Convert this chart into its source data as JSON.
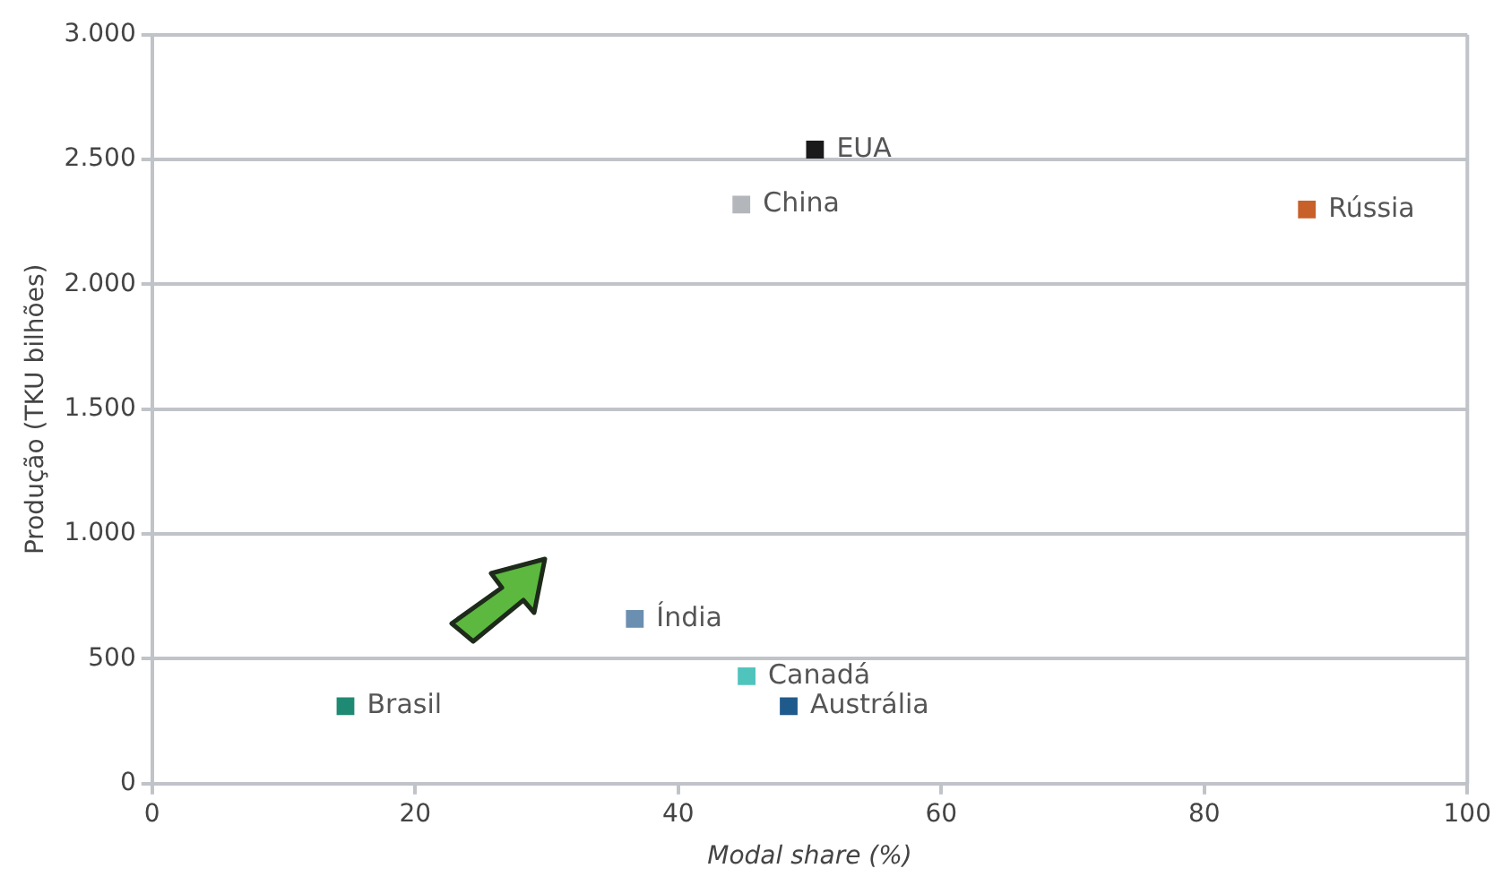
{
  "chart_data": {
    "type": "scatter",
    "xlabel": "Modal share (%)",
    "ylabel": "Produção (TKU bilhões)",
    "xlim": [
      0,
      100
    ],
    "xticks": [
      0,
      20,
      40,
      60,
      80,
      100
    ],
    "ylim": [
      0,
      3000
    ],
    "yticks": [
      0,
      {
        "value": 500,
        "label": "500"
      },
      {
        "value": 1000,
        "label": "1.000"
      },
      {
        "value": 1500,
        "label": "1.500"
      },
      {
        "value": 2000,
        "label": "2.000"
      },
      {
        "value": 2500,
        "label": "2.500"
      },
      {
        "value": 3000,
        "label": "3.000"
      }
    ],
    "grid": "y",
    "legend": false,
    "marker": "square",
    "series": [
      {
        "name": "EUA",
        "color": "#1a1a1a",
        "x": [
          50.4
        ],
        "values": [
          2540
        ]
      },
      {
        "name": "China",
        "color": "#b3b6ba",
        "x": [
          44.8
        ],
        "values": [
          2320
        ]
      },
      {
        "name": "Rússia",
        "color": "#c8602a",
        "x": [
          87.8
        ],
        "values": [
          2300
        ]
      },
      {
        "name": "Índia",
        "color": "#6a8fb0",
        "x": [
          36.7
        ],
        "values": [
          660
        ]
      },
      {
        "name": "Canadá",
        "color": "#4fc4bd",
        "x": [
          45.2
        ],
        "values": [
          430
        ]
      },
      {
        "name": "Austrália",
        "color": "#1f5a8c",
        "x": [
          48.4
        ],
        "values": [
          310
        ]
      },
      {
        "name": "Brasil",
        "color": "#1f8a73",
        "x": [
          14.7
        ],
        "values": [
          310
        ]
      }
    ]
  }
}
